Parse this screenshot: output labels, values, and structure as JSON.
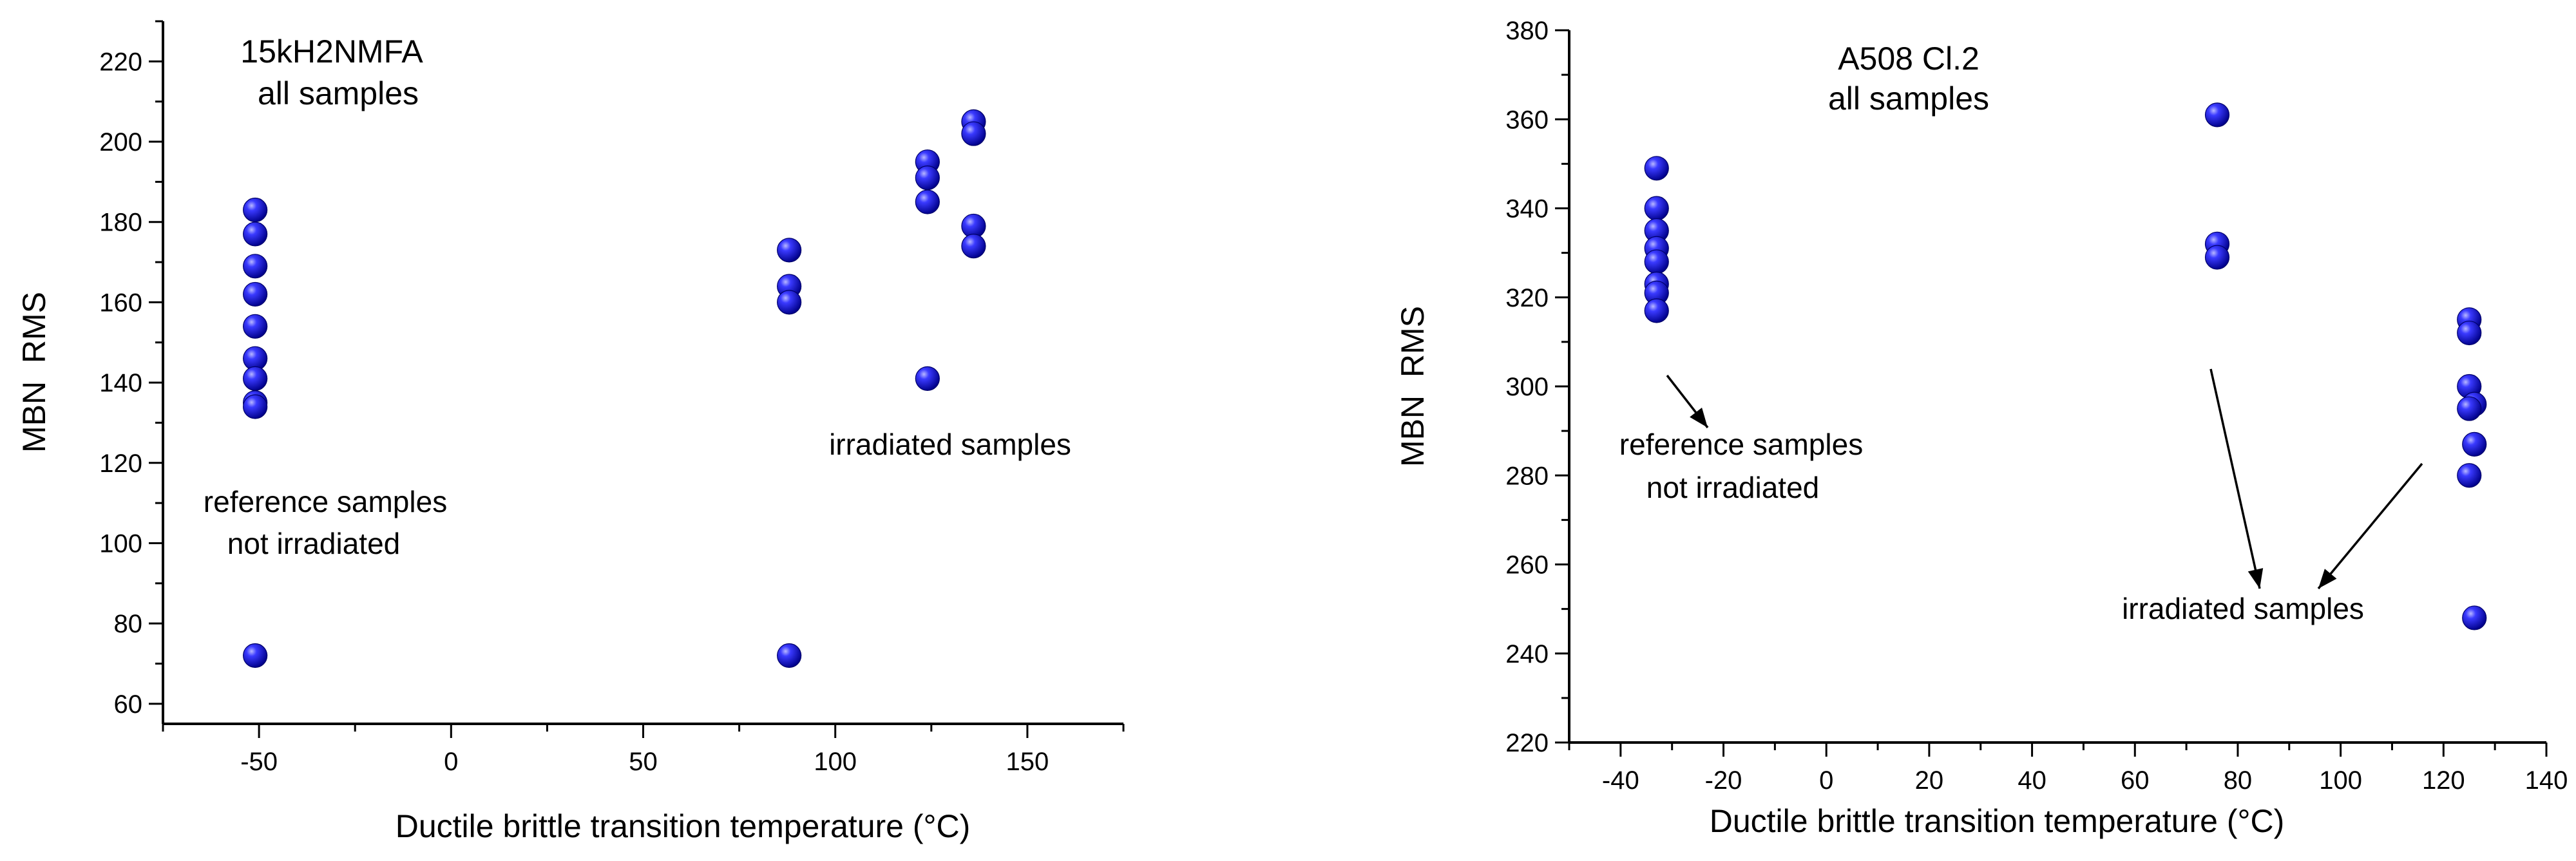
{
  "chart_data": [
    {
      "type": "scatter",
      "title_lines": [
        "15kH2NMFA",
        "all samples"
      ],
      "xlabel": "Ductile brittle transition temperature",
      "xlabel_unit": "(°C)",
      "ylabel": "MBN  RMS",
      "xlim": [
        -75,
        175
      ],
      "ylim": [
        55,
        230
      ],
      "xticks": [
        -50,
        0,
        50,
        100,
        150
      ],
      "yticks": [
        60,
        80,
        100,
        120,
        140,
        160,
        180,
        200,
        220
      ],
      "annotations": [
        {
          "lines": [
            "reference samples",
            "not irradiated"
          ]
        },
        {
          "lines": [
            "irradiated samples"
          ]
        }
      ],
      "series": [
        {
          "marker_color": "#1a1aee",
          "points": [
            [
              -51,
              183
            ],
            [
              -51,
              177
            ],
            [
              -51,
              169
            ],
            [
              -51,
              162
            ],
            [
              -51,
              154
            ],
            [
              -51,
              146
            ],
            [
              -51,
              141
            ],
            [
              -51,
              135
            ],
            [
              -51,
              134
            ],
            [
              -51,
              72
            ],
            [
              88,
              173
            ],
            [
              88,
              164
            ],
            [
              88,
              160
            ],
            [
              88,
              72
            ],
            [
              124,
              195
            ],
            [
              124,
              191
            ],
            [
              124,
              185
            ],
            [
              124,
              141
            ],
            [
              136,
              205
            ],
            [
              136,
              202
            ],
            [
              136,
              179
            ],
            [
              136,
              174
            ]
          ]
        }
      ]
    },
    {
      "type": "scatter",
      "title_lines": [
        "A508 Cl.2",
        "all samples"
      ],
      "xlabel": "Ductile brittle transition temperature",
      "xlabel_unit": "(°C)",
      "ylabel": "MBN  RMS",
      "xlim": [
        -50,
        140
      ],
      "ylim": [
        220,
        380
      ],
      "xticks": [
        -40,
        -20,
        0,
        20,
        40,
        60,
        80,
        100,
        120,
        140
      ],
      "yticks": [
        220,
        240,
        260,
        280,
        300,
        320,
        340,
        360,
        380
      ],
      "annotations": [
        {
          "lines": [
            "reference samples",
            "not irradiated"
          ]
        },
        {
          "lines": [
            "irradiated samples"
          ]
        }
      ],
      "series": [
        {
          "marker_color": "#1a1aee",
          "points": [
            [
              -33,
              349
            ],
            [
              -33,
              340
            ],
            [
              -33,
              335
            ],
            [
              -33,
              331
            ],
            [
              -33,
              328
            ],
            [
              -33,
              323
            ],
            [
              -33,
              321
            ],
            [
              -33,
              317
            ],
            [
              76,
              361
            ],
            [
              76,
              332
            ],
            [
              76,
              329
            ],
            [
              125,
              315
            ],
            [
              125,
              312
            ],
            [
              125,
              300
            ],
            [
              126,
              296
            ],
            [
              125,
              295
            ],
            [
              126,
              287
            ],
            [
              125,
              280
            ],
            [
              126,
              248
            ]
          ]
        }
      ]
    }
  ]
}
